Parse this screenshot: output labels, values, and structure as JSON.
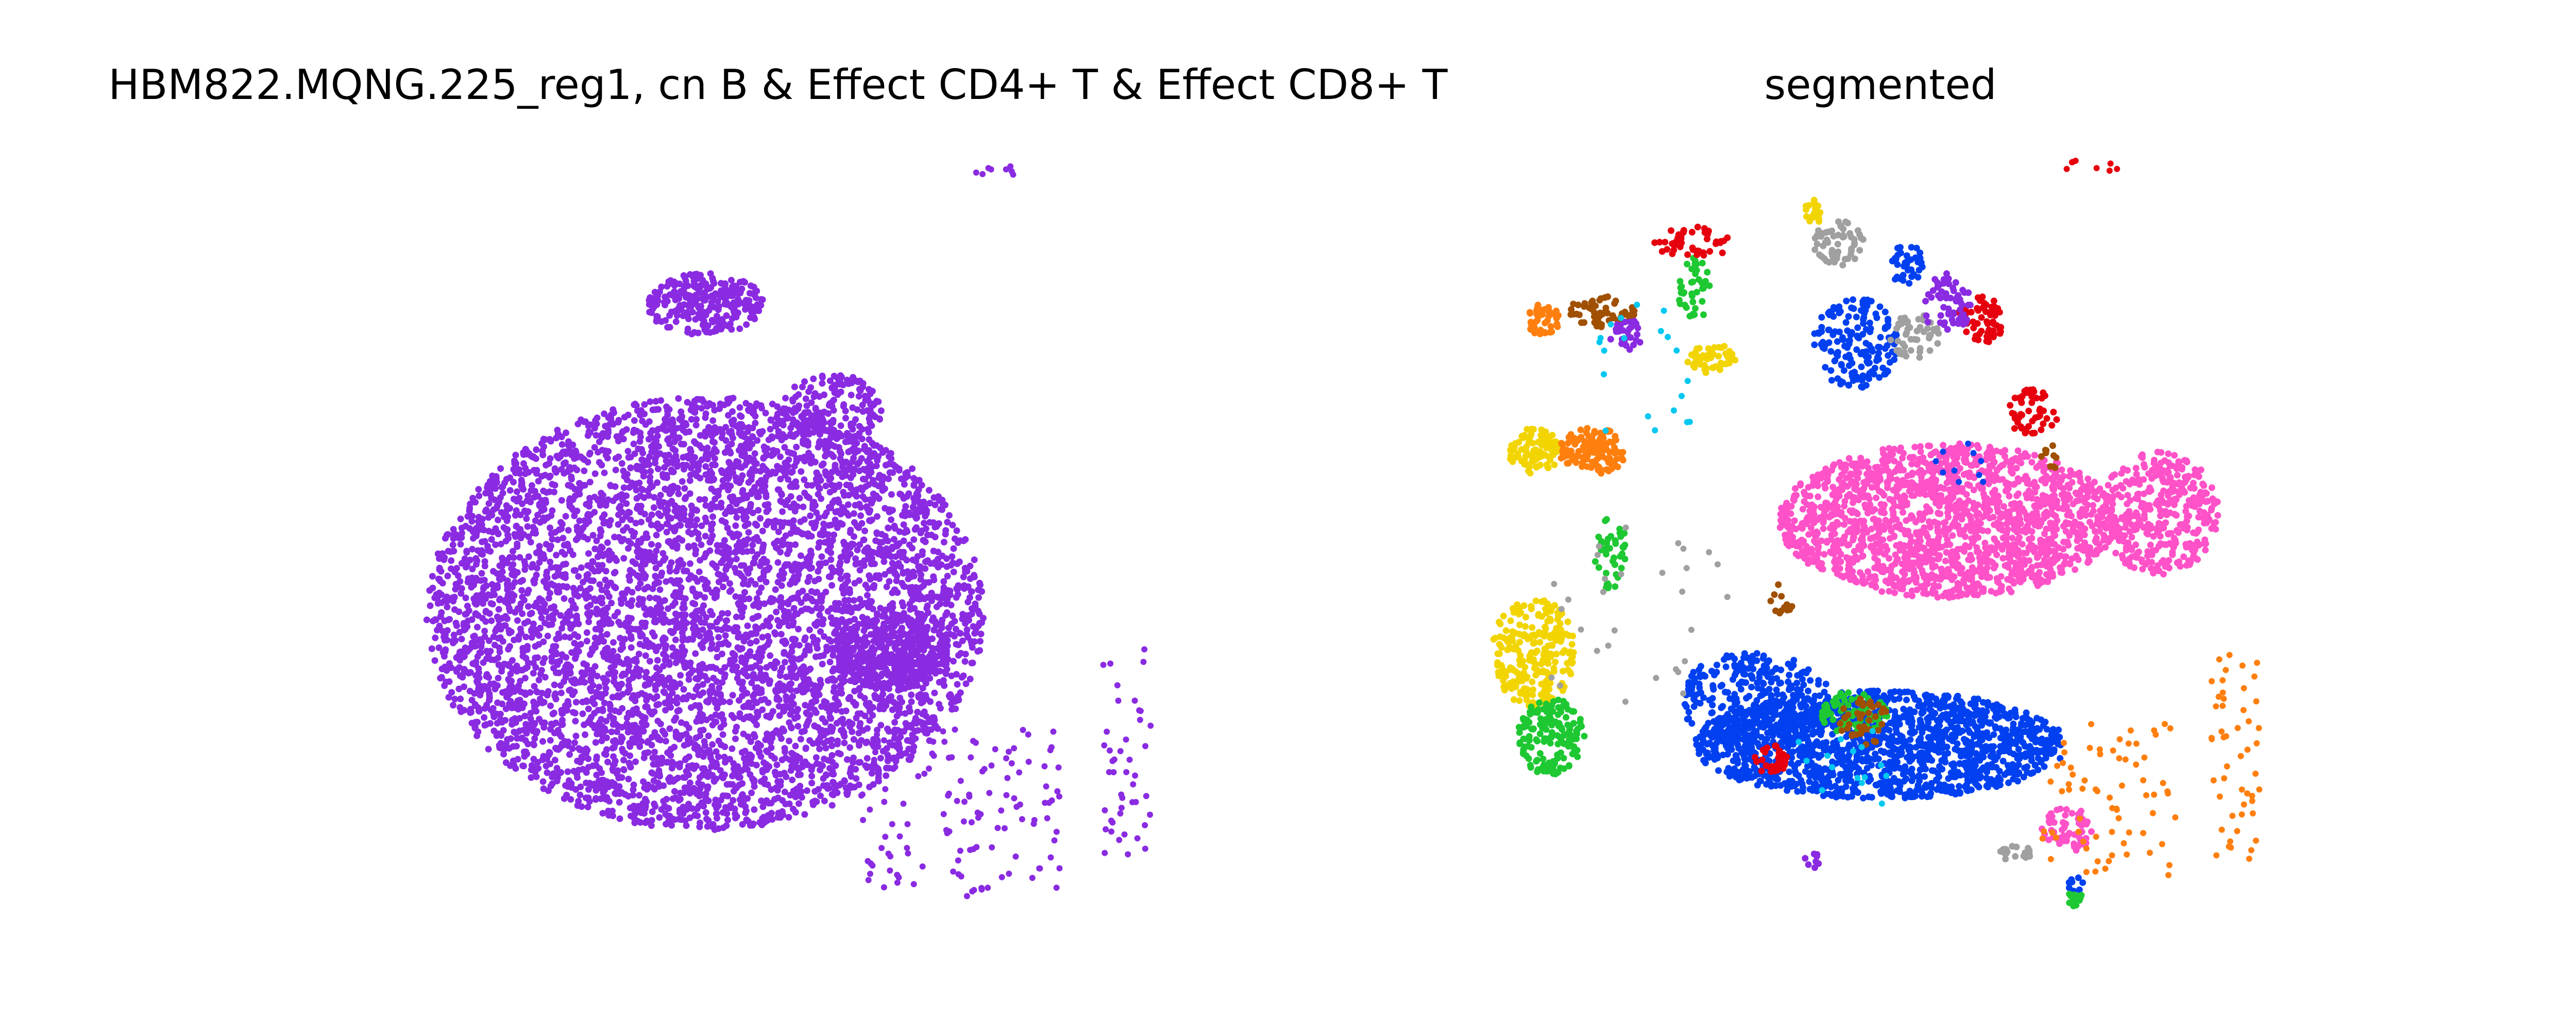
{
  "figure": {
    "left_title": "HBM822.MQNG.225_reg1, cn B & Effect CD4+ T & Effect CD8+ T",
    "right_title": "segmented"
  },
  "chart_data": [
    {
      "type": "scatter",
      "title": "HBM822.MQNG.225_reg1, cn B & Effect CD4+ T & Effect CD8+ T",
      "xlabel": "",
      "ylabel": "",
      "axes_visible": false,
      "grid": false,
      "xlim": [
        0,
        100
      ],
      "ylim": [
        0,
        100
      ],
      "colors": {
        "cells": "#8a2be2"
      },
      "series": [
        {
          "color": "#8a2be2",
          "regions": [
            {
              "kind": "blob",
              "cx": 42,
              "cy": 40,
              "rx": 33,
              "ry": 28,
              "count": 5200
            },
            {
              "kind": "blob",
              "cx": 64,
              "cy": 35,
              "rx": 7,
              "ry": 5,
              "count": 380
            },
            {
              "kind": "blob",
              "cx": 42,
              "cy": 80,
              "rx": 7,
              "ry": 4,
              "count": 260
            },
            {
              "kind": "blob",
              "cx": 57,
              "cy": 66,
              "rx": 6,
              "ry": 5,
              "count": 180
            },
            {
              "kind": "sparse",
              "cx": 72,
              "cy": 14,
              "rx": 12,
              "ry": 11,
              "count": 130
            },
            {
              "kind": "sparse",
              "cx": 92,
              "cy": 22,
              "rx": 3,
              "ry": 14,
              "count": 45
            },
            {
              "kind": "sparse",
              "cx": 77,
              "cy": 97,
              "rx": 3,
              "ry": 1,
              "count": 8
            }
          ]
        }
      ]
    },
    {
      "type": "scatter",
      "title": "segmented",
      "xlabel": "",
      "ylabel": "",
      "axes_visible": false,
      "grid": false,
      "xlim": [
        0,
        100
      ],
      "ylim": [
        0,
        100
      ],
      "palette": [
        "#ff7f0e",
        "#f2d500",
        "#1ec832",
        "#e6000e",
        "#8a2be2",
        "#ff52c8",
        "#00c8f0",
        "#a05000",
        "#a0a0a0",
        "#0040f0"
      ],
      "series": [
        {
          "color": "#ff52c8",
          "regions": [
            {
              "kind": "blob",
              "cx": 58,
              "cy": 52,
              "rx": 20,
              "ry": 10,
              "count": 1700
            },
            {
              "kind": "blob",
              "cx": 83,
              "cy": 53,
              "rx": 7,
              "ry": 8,
              "count": 380
            },
            {
              "kind": "blob",
              "cx": 72,
              "cy": 12,
              "rx": 3,
              "ry": 3,
              "count": 60
            }
          ]
        },
        {
          "color": "#0040f0",
          "regions": [
            {
              "kind": "blob",
              "cx": 50,
              "cy": 23,
              "rx": 22,
              "ry": 7,
              "count": 1500
            },
            {
              "kind": "blob",
              "cx": 35,
              "cy": 29,
              "rx": 9,
              "ry": 6,
              "count": 300
            },
            {
              "kind": "blob",
              "cx": 47,
              "cy": 75,
              "rx": 5,
              "ry": 6,
              "count": 160
            },
            {
              "kind": "blob",
              "cx": 53,
              "cy": 85,
              "rx": 2,
              "ry": 3,
              "count": 40
            },
            {
              "kind": "sparse",
              "cx": 59,
              "cy": 60,
              "rx": 4,
              "ry": 3,
              "count": 10
            },
            {
              "kind": "blob",
              "cx": 73,
              "cy": 5,
              "rx": 1,
              "ry": 1,
              "count": 8
            }
          ]
        },
        {
          "color": "#f2d500",
          "regions": [
            {
              "kind": "blob",
              "cx": 9,
              "cy": 35,
              "rx": 5,
              "ry": 7,
              "count": 250
            },
            {
              "kind": "blob",
              "cx": 9,
              "cy": 61,
              "rx": 3,
              "ry": 3,
              "count": 90
            },
            {
              "kind": "blob",
              "cx": 30,
              "cy": 73,
              "rx": 3,
              "ry": 2,
              "count": 50
            },
            {
              "kind": "blob",
              "cx": 42,
              "cy": 92,
              "rx": 1,
              "ry": 2,
              "count": 18
            }
          ]
        },
        {
          "color": "#1ec832",
          "regions": [
            {
              "kind": "blob",
              "cx": 11,
              "cy": 24,
              "rx": 4,
              "ry": 5,
              "count": 160
            },
            {
              "kind": "blob",
              "cx": 47,
              "cy": 27,
              "rx": 4,
              "ry": 3,
              "count": 70
            },
            {
              "kind": "blob",
              "cx": 28,
              "cy": 82,
              "rx": 2,
              "ry": 4,
              "count": 40
            },
            {
              "kind": "blob",
              "cx": 18,
              "cy": 48,
              "rx": 2,
              "ry": 5,
              "count": 40
            },
            {
              "kind": "blob",
              "cx": 73,
              "cy": 3,
              "rx": 1,
              "ry": 1,
              "count": 12
            }
          ]
        },
        {
          "color": "#ff7f0e",
          "regions": [
            {
              "kind": "blob",
              "cx": 16,
              "cy": 61,
              "rx": 4,
              "ry": 3,
              "count": 130
            },
            {
              "kind": "blob",
              "cx": 10,
              "cy": 78,
              "rx": 2,
              "ry": 2,
              "count": 40
            },
            {
              "kind": "sparse",
              "cx": 77,
              "cy": 16,
              "rx": 8,
              "ry": 10,
              "count": 70
            },
            {
              "kind": "sparse",
              "cx": 92,
              "cy": 22,
              "rx": 3,
              "ry": 14,
              "count": 50
            }
          ]
        },
        {
          "color": "#e6000e",
          "regions": [
            {
              "kind": "blob",
              "cx": 62,
              "cy": 78,
              "rx": 3,
              "ry": 3,
              "count": 60
            },
            {
              "kind": "blob",
              "cx": 68,
              "cy": 66,
              "rx": 3,
              "ry": 3,
              "count": 50
            },
            {
              "kind": "blob",
              "cx": 28,
              "cy": 88,
              "rx": 5,
              "ry": 2,
              "count": 50
            },
            {
              "kind": "blob",
              "cx": 37,
              "cy": 21,
              "rx": 2,
              "ry": 2,
              "count": 30
            },
            {
              "kind": "sparse",
              "cx": 75,
              "cy": 98,
              "rx": 3,
              "ry": 1,
              "count": 8
            }
          ]
        },
        {
          "color": "#a0a0a0",
          "regions": [
            {
              "kind": "blob",
              "cx": 45,
              "cy": 88,
              "rx": 3,
              "ry": 3,
              "count": 60
            },
            {
              "kind": "blob",
              "cx": 54,
              "cy": 76,
              "rx": 3,
              "ry": 3,
              "count": 50
            },
            {
              "kind": "blob",
              "cx": 66,
              "cy": 9,
              "rx": 2,
              "ry": 1,
              "count": 20
            },
            {
              "kind": "sparse",
              "cx": 20,
              "cy": 40,
              "rx": 12,
              "ry": 12,
              "count": 30
            }
          ]
        },
        {
          "color": "#a05000",
          "regions": [
            {
              "kind": "blob",
              "cx": 17,
              "cy": 79,
              "rx": 4,
              "ry": 2,
              "count": 60
            },
            {
              "kind": "blob",
              "cx": 48,
              "cy": 26,
              "rx": 3,
              "ry": 3,
              "count": 40
            },
            {
              "kind": "blob",
              "cx": 70,
              "cy": 60,
              "rx": 1,
              "ry": 2,
              "count": 10
            },
            {
              "kind": "blob",
              "cx": 38,
              "cy": 42,
              "rx": 2,
              "ry": 2,
              "count": 12
            }
          ]
        },
        {
          "color": "#8a2be2",
          "regions": [
            {
              "kind": "blob",
              "cx": 58,
              "cy": 80,
              "rx": 3,
              "ry": 4,
              "count": 60
            },
            {
              "kind": "blob",
              "cx": 20,
              "cy": 76,
              "rx": 2,
              "ry": 2,
              "count": 30
            },
            {
              "kind": "blob",
              "cx": 42,
              "cy": 8,
              "rx": 1,
              "ry": 1,
              "count": 8
            }
          ]
        },
        {
          "color": "#00c8f0",
          "regions": [
            {
              "kind": "sparse",
              "cx": 22,
              "cy": 70,
              "rx": 6,
              "ry": 10,
              "count": 20
            },
            {
              "kind": "sparse",
              "cx": 45,
              "cy": 20,
              "rx": 6,
              "ry": 5,
              "count": 15
            }
          ]
        }
      ]
    }
  ]
}
